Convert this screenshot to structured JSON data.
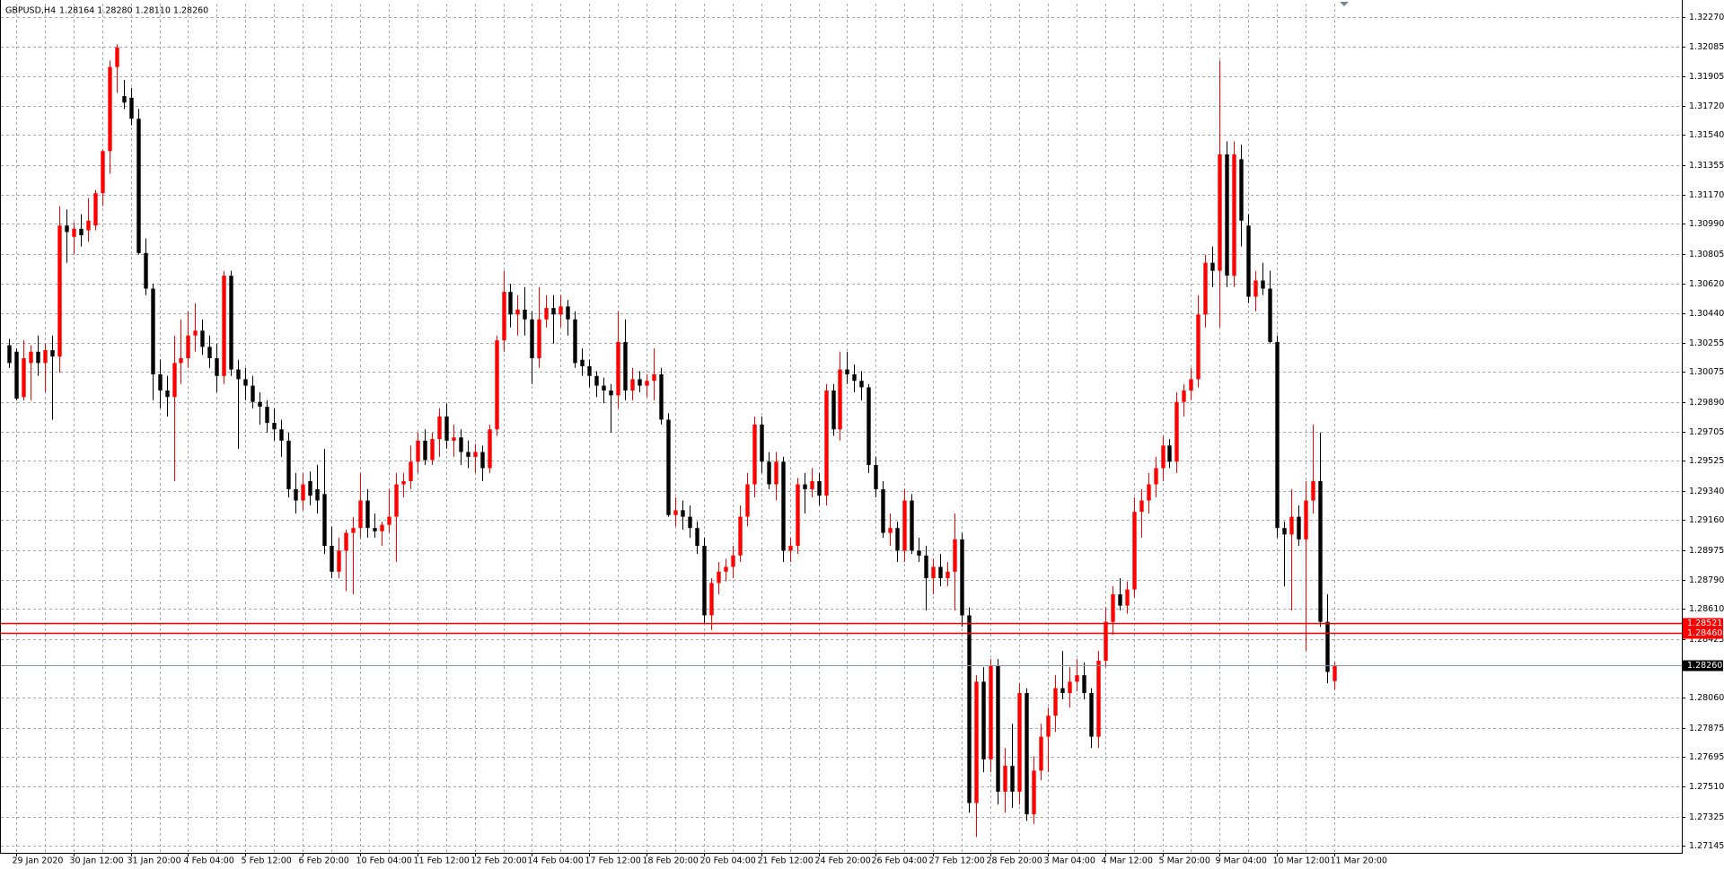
{
  "chart_data": {
    "type": "candlestick",
    "title": "GBPUSD,H4",
    "ohlc_text": "1.28164 1.28280 1.28110 1.28260",
    "up_color": "#ff0000",
    "down_color": "#000000",
    "grid": true,
    "ylim": [
      1.27102,
      1.32352
    ],
    "yticks": [
      {
        "value": 1.3227,
        "label": "1.32270"
      },
      1.32085,
      1.31905,
      {
        "value": 1.3172,
        "label": "1.31720"
      },
      {
        "value": 1.3154,
        "label": "1.31540"
      },
      1.31355,
      {
        "value": 1.3117,
        "label": "1.31170"
      },
      {
        "value": 1.3099,
        "label": "1.30990"
      },
      1.30805,
      {
        "value": 1.3062,
        "label": "1.30620"
      },
      {
        "value": 1.3044,
        "label": "1.30440"
      },
      1.30255,
      1.30075,
      {
        "value": 1.2989,
        "label": "1.29890"
      },
      1.29705,
      1.29525,
      {
        "value": 1.2934,
        "label": "1.29340"
      },
      {
        "value": 1.2916,
        "label": "1.29160"
      },
      1.28975,
      {
        "value": 1.2879,
        "label": "1.28790"
      },
      {
        "value": 1.2861,
        "label": "1.28610"
      },
      1.28425,
      {
        "value": 1.2806,
        "label": "1.28060"
      },
      1.27875,
      1.27695,
      {
        "value": 1.2751,
        "label": "1.27510"
      },
      1.27325,
      1.27145
    ],
    "levels": [
      {
        "value": 1.28521,
        "label": "1.28521",
        "color": "#ff0000"
      },
      {
        "value": 1.2846,
        "label": "1.28460",
        "color": "#ff0000"
      }
    ],
    "price_line": {
      "value": 1.2826,
      "label": "1.28260",
      "color": "#000000"
    },
    "categories": [
      null,
      "29 Jan 2020",
      null,
      null,
      null,
      null,
      null,
      null,
      null,
      "30 Jan 12:00",
      null,
      null,
      null,
      null,
      null,
      null,
      null,
      "31 Jan 20:00",
      null,
      null,
      null,
      null,
      null,
      null,
      null,
      "4 Feb 04:00",
      null,
      null,
      null,
      null,
      null,
      null,
      null,
      "5 Feb 12:00",
      null,
      null,
      null,
      null,
      null,
      null,
      null,
      "6 Feb 20:00",
      null,
      null,
      null,
      null,
      null,
      null,
      null,
      "10 Feb 04:00",
      null,
      null,
      null,
      null,
      null,
      null,
      null,
      "11 Feb 12:00",
      null,
      null,
      null,
      null,
      null,
      null,
      null,
      "12 Feb 20:00",
      null,
      null,
      null,
      null,
      null,
      null,
      null,
      "14 Feb 04:00",
      null,
      null,
      null,
      null,
      null,
      null,
      null,
      "17 Feb 12:00",
      null,
      null,
      null,
      null,
      null,
      null,
      null,
      "18 Feb 20:00",
      null,
      null,
      null,
      null,
      null,
      null,
      null,
      "20 Feb 04:00",
      null,
      null,
      null,
      null,
      null,
      null,
      null,
      "21 Feb 12:00",
      null,
      null,
      null,
      null,
      null,
      null,
      null,
      "24 Feb 20:00",
      null,
      null,
      null,
      null,
      null,
      null,
      null,
      "26 Feb 04:00",
      null,
      null,
      null,
      null,
      null,
      null,
      null,
      "27 Feb 12:00",
      null,
      null,
      null,
      null,
      null,
      null,
      null,
      "28 Feb 20:00",
      null,
      null,
      null,
      null,
      null,
      null,
      null,
      "3 Mar 04:00",
      null,
      null,
      null,
      null,
      null,
      null,
      null,
      "4 Mar 12:00",
      null,
      null,
      null,
      null,
      null,
      null,
      null,
      "5 Mar 20:00",
      null,
      null,
      null,
      null,
      null,
      null,
      null,
      "9 Mar 04:00",
      null,
      null,
      null,
      null,
      null,
      null,
      null,
      "10 Mar 12:00",
      null,
      null,
      null,
      null,
      null,
      null,
      null,
      "11 Mar 20:00"
    ],
    "open": [
      1.3024,
      1.302,
      1.2992,
      1.3013,
      1.302,
      1.3013,
      1.3021,
      1.3017,
      1.3098,
      1.3091,
      1.3096,
      1.3095,
      1.3098,
      1.3118,
      1.3144,
      1.3196,
      1.3178,
      1.3177,
      1.3164,
      1.3081,
      1.3059,
      1.3006,
      1.2996,
      1.2992,
      1.3013,
      1.3016,
      1.303,
      1.3033,
      1.3023,
      1.3016,
      1.3005,
      1.3067,
      1.3009,
      1.3003,
      1.2999,
      1.2989,
      1.2986,
      1.2976,
      1.2972,
      1.2965,
      1.2935,
      1.2928,
      1.294,
      1.2935,
      1.2932,
      1.29,
      1.2884,
      1.2897,
      1.2908,
      1.2911,
      1.2928,
      1.2911,
      1.2909,
      1.2913,
      1.2918,
      1.2938,
      1.294,
      1.2952,
      1.2965,
      1.2953,
      1.2966,
      1.298,
      1.2965,
      1.2967,
      1.2958,
      1.2955,
      1.2958,
      1.2948,
      1.2972,
      1.3027,
      1.3057,
      1.3043,
      1.3046,
      1.304,
      1.3016,
      1.304,
      1.3047,
      1.3043,
      1.3048,
      1.304,
      1.3015,
      1.3011,
      1.3005,
      1.2999,
      1.2996,
      1.2993,
      1.3026,
      1.2996,
      1.3003,
      1.2999,
      1.3002,
      1.3006,
      1.2978,
      1.2919,
      1.2922,
      1.2918,
      1.2911,
      1.29,
      1.2857,
      1.2877,
      1.2884,
      1.2887,
      1.2894,
      1.2918,
      1.2938,
      1.2975,
      1.2952,
      1.2938,
      1.2952,
      1.2897,
      1.29,
      1.2938,
      1.2935,
      1.294,
      1.2931,
      1.2996,
      1.2972,
      1.3009,
      1.3006,
      1.3002,
      1.2998,
      1.295,
      1.2935,
      1.2908,
      1.2911,
      1.2897,
      1.2928,
      1.2897,
      1.2894,
      1.288,
      1.2887,
      1.288,
      1.2884,
      1.2904,
      1.2857,
      1.2741,
      1.2816,
      1.2768,
      1.2826,
      1.2748,
      1.2764,
      1.2748,
      1.2809,
      1.2734,
      1.2761,
      1.2782,
      1.2795,
      1.2812,
      1.2809,
      1.2816,
      1.282,
      1.2809,
      1.2782,
      1.2829,
      1.2853,
      1.287,
      1.2863,
      1.2873,
      1.2921,
      1.2928,
      1.2938,
      1.2948,
      1.2962,
      1.2952,
      1.2989,
      1.2996,
      1.3003,
      1.3043,
      1.3075,
      1.307,
      1.3142,
      1.3067,
      1.3139,
      1.3098,
      1.3054,
      1.3064,
      1.3059,
      1.3026,
      1.2911,
      1.2907,
      1.2918,
      1.2904,
      1.2928,
      1.294,
      1.2853,
      1.28164
    ],
    "high": [
      1.3028,
      1.3022,
      1.3027,
      1.3024,
      1.303,
      1.3025,
      1.303,
      1.311,
      1.3108,
      1.31,
      1.3105,
      1.3115,
      1.312,
      1.3145,
      1.32,
      1.321,
      1.3188,
      1.3183,
      1.317,
      1.309,
      1.3062,
      1.3015,
      1.3005,
      1.303,
      1.304,
      1.3045,
      1.305,
      1.304,
      1.303,
      1.3025,
      1.307,
      1.307,
      1.3015,
      1.301,
      1.3005,
      1.2995,
      1.299,
      1.2985,
      1.2978,
      1.297,
      1.2945,
      1.2945,
      1.2946,
      1.295,
      1.296,
      1.2912,
      1.2905,
      1.291,
      1.2918,
      1.2945,
      1.2935,
      1.292,
      1.2915,
      1.2935,
      1.2945,
      1.2945,
      1.2962,
      1.297,
      1.2972,
      1.297,
      1.2985,
      1.2988,
      1.2975,
      1.2972,
      1.2965,
      1.2963,
      1.2962,
      1.2975,
      1.303,
      1.307,
      1.3062,
      1.3055,
      1.306,
      1.3045,
      1.306,
      1.3055,
      1.3055,
      1.3055,
      1.3052,
      1.3045,
      1.3022,
      1.3015,
      1.3008,
      1.3004,
      1.3,
      1.3045,
      1.304,
      1.301,
      1.3008,
      1.3006,
      1.3022,
      1.301,
      1.2982,
      1.293,
      1.2928,
      1.2925,
      1.2915,
      1.2905,
      1.288,
      1.289,
      1.2892,
      1.29,
      1.2925,
      1.2945,
      1.298,
      1.298,
      1.2958,
      1.2958,
      1.2955,
      1.2905,
      1.2942,
      1.2945,
      1.2948,
      1.2945,
      1.3,
      1.3,
      1.302,
      1.302,
      1.3012,
      1.3008,
      1.3,
      1.2955,
      1.294,
      1.292,
      1.2915,
      1.2935,
      1.2932,
      1.2905,
      1.29,
      1.2892,
      1.2895,
      1.289,
      1.292,
      1.2908,
      1.2862,
      1.282,
      1.2825,
      1.283,
      1.283,
      1.2775,
      1.279,
      1.2815,
      1.2812,
      1.277,
      1.279,
      1.28,
      1.282,
      1.2835,
      1.2825,
      1.283,
      1.2828,
      1.2812,
      1.2835,
      1.2862,
      1.2875,
      1.288,
      1.2878,
      1.293,
      1.2935,
      1.2945,
      1.2955,
      1.2968,
      1.2966,
      1.2995,
      1.3,
      1.301,
      1.3055,
      1.308,
      1.3085,
      1.32,
      1.315,
      1.315,
      1.3148,
      1.3105,
      1.307,
      1.3075,
      1.307,
      1.303,
      1.2915,
      1.2935,
      1.2925,
      1.294,
      1.2975,
      1.297,
      1.287,
      1.2828
    ],
    "low": [
      1.301,
      1.299,
      1.299,
      1.299,
      1.3005,
      1.2995,
      1.2978,
      1.3007,
      1.3075,
      1.308,
      1.3085,
      1.3088,
      1.3095,
      1.311,
      1.313,
      1.318,
      1.317,
      1.316,
      1.308,
      1.3055,
      1.299,
      1.2985,
      1.298,
      1.294,
      1.3,
      1.301,
      1.302,
      1.3018,
      1.301,
      1.2995,
      1.3,
      1.3005,
      1.296,
      1.299,
      1.2985,
      1.2975,
      1.297,
      1.2965,
      1.2955,
      1.293,
      1.292,
      1.2922,
      1.2925,
      1.292,
      1.2895,
      1.288,
      1.288,
      1.2872,
      1.287,
      1.2905,
      1.2905,
      1.2905,
      1.29,
      1.2908,
      1.289,
      1.293,
      1.2935,
      1.2945,
      1.295,
      1.295,
      1.2955,
      1.296,
      1.2955,
      1.295,
      1.2948,
      1.2945,
      1.294,
      1.2945,
      1.2968,
      1.302,
      1.3035,
      1.303,
      1.303,
      1.3,
      1.301,
      1.3035,
      1.3025,
      1.3035,
      1.303,
      1.301,
      1.3005,
      1.2998,
      1.2992,
      1.2988,
      1.297,
      1.2985,
      1.299,
      1.299,
      1.2995,
      1.2992,
      1.299,
      1.2975,
      1.2918,
      1.2912,
      1.291,
      1.2905,
      1.2895,
      1.2852,
      1.2848,
      1.287,
      1.2878,
      1.288,
      1.289,
      1.2912,
      1.293,
      1.2945,
      1.2935,
      1.2928,
      1.289,
      1.289,
      1.2895,
      1.292,
      1.293,
      1.2925,
      1.2925,
      1.2968,
      1.2965,
      1.3,
      1.2995,
      1.299,
      1.2945,
      1.293,
      1.2905,
      1.29,
      1.289,
      1.289,
      1.2895,
      1.289,
      1.286,
      1.287,
      1.2875,
      1.2875,
      1.286,
      1.285,
      1.2735,
      1.272,
      1.276,
      1.276,
      1.274,
      1.2735,
      1.2738,
      1.274,
      1.273,
      1.2728,
      1.2755,
      1.276,
      1.2785,
      1.2805,
      1.28,
      1.281,
      1.2805,
      1.2775,
      1.2775,
      1.2825,
      1.2845,
      1.286,
      1.2858,
      1.2868,
      1.2905,
      1.292,
      1.293,
      1.294,
      1.2948,
      1.2945,
      1.298,
      1.299,
      1.2998,
      1.3035,
      1.306,
      1.3035,
      1.306,
      1.306,
      1.3085,
      1.305,
      1.3045,
      1.3055,
      1.3025,
      1.2905,
      1.2875,
      1.286,
      1.29,
      1.2835,
      1.292,
      1.285,
      1.2815,
      1.2811
    ],
    "close": [
      1.3013,
      1.2991,
      1.3016,
      1.302,
      1.3013,
      1.3021,
      1.3017,
      1.3098,
      1.3094,
      1.3096,
      1.3092,
      1.3101,
      1.3118,
      1.3144,
      1.3196,
      1.3208,
      1.3174,
      1.3164,
      1.3081,
      1.3059,
      1.3006,
      1.2996,
      1.2992,
      1.3013,
      1.3016,
      1.303,
      1.3033,
      1.3023,
      1.3016,
      1.3005,
      1.3067,
      1.3009,
      1.3003,
      1.2999,
      1.2989,
      1.2986,
      1.2976,
      1.2972,
      1.2965,
      1.2935,
      1.2928,
      1.2938,
      1.2931,
      1.2928,
      1.29,
      1.2884,
      1.2897,
      1.2908,
      1.2911,
      1.2928,
      1.2911,
      1.2909,
      1.2913,
      1.2918,
      1.2938,
      1.294,
      1.2952,
      1.2965,
      1.2953,
      1.2966,
      1.298,
      1.2965,
      1.2967,
      1.2958,
      1.2955,
      1.2958,
      1.2948,
      1.2972,
      1.3027,
      1.3057,
      1.3043,
      1.3046,
      1.304,
      1.3016,
      1.304,
      1.3047,
      1.3043,
      1.3048,
      1.304,
      1.3013,
      1.3011,
      1.3005,
      1.2999,
      1.2996,
      1.2993,
      1.3026,
      1.2996,
      1.3003,
      1.2999,
      1.3002,
      1.3006,
      1.2978,
      1.2919,
      1.2922,
      1.2918,
      1.2911,
      1.29,
      1.2857,
      1.2877,
      1.2884,
      1.2887,
      1.2894,
      1.2918,
      1.2938,
      1.2975,
      1.2952,
      1.2938,
      1.2952,
      1.2897,
      1.29,
      1.2938,
      1.2935,
      1.294,
      1.2931,
      1.2996,
      1.2972,
      1.3009,
      1.3006,
      1.3002,
      1.2998,
      1.295,
      1.2935,
      1.2908,
      1.2911,
      1.2897,
      1.2928,
      1.2897,
      1.2894,
      1.288,
      1.2887,
      1.288,
      1.2884,
      1.2904,
      1.2857,
      1.2741,
      1.2816,
      1.2768,
      1.2826,
      1.2748,
      1.2764,
      1.2748,
      1.2809,
      1.2734,
      1.2761,
      1.2782,
      1.2795,
      1.2812,
      1.2809,
      1.2816,
      1.282,
      1.2809,
      1.2782,
      1.2829,
      1.2853,
      1.287,
      1.2863,
      1.2873,
      1.2921,
      1.2928,
      1.2938,
      1.2948,
      1.2962,
      1.2952,
      1.2989,
      1.2996,
      1.3003,
      1.3043,
      1.3075,
      1.307,
      1.3142,
      1.3067,
      1.3142,
      1.3101,
      1.3054,
      1.3064,
      1.3059,
      1.3026,
      1.2911,
      1.2907,
      1.2918,
      1.2904,
      1.2928,
      1.294,
      1.2853,
      1.2822,
      1.2826
    ]
  }
}
